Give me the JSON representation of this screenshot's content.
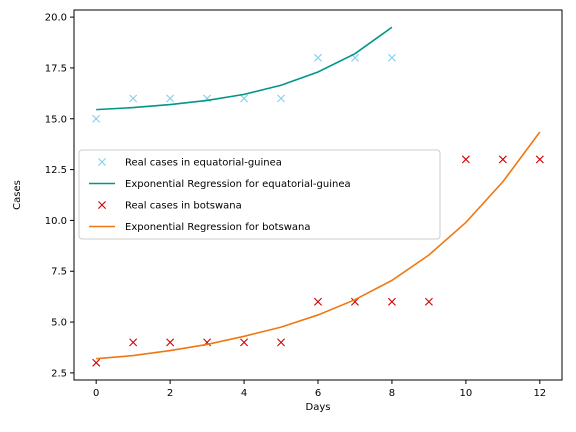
{
  "chart_data": {
    "type": "line",
    "title": "",
    "xlabel": "Days",
    "ylabel": "Cases",
    "xlim": [
      -0.6,
      12.6
    ],
    "ylim": [
      2.15,
      20.35
    ],
    "xticks": [
      0,
      2,
      4,
      6,
      8,
      10,
      12
    ],
    "yticks": [
      2.5,
      5.0,
      7.5,
      10.0,
      12.5,
      15.0,
      17.5,
      20.0
    ],
    "ytick_labels": [
      "2.5",
      "5.0",
      "7.5",
      "10.0",
      "12.5",
      "15.0",
      "17.5",
      "20.0"
    ],
    "grid": false,
    "legend_position": "center-left",
    "series": [
      {
        "name": "Real cases in equatorial-guinea",
        "kind": "scatter",
        "marker": "x",
        "color": "#87ceeb",
        "x": [
          0,
          1,
          2,
          3,
          4,
          5,
          6,
          7,
          8
        ],
        "y": [
          15,
          16,
          16,
          16,
          16,
          16,
          18,
          18,
          18
        ]
      },
      {
        "name": "Exponential Regression for equatorial-guinea",
        "kind": "line",
        "color": "#009688",
        "x": [
          0,
          1,
          2,
          3,
          4,
          5,
          6,
          7,
          8
        ],
        "y": [
          15.45,
          15.55,
          15.7,
          15.9,
          16.2,
          16.65,
          17.3,
          18.2,
          19.5
        ]
      },
      {
        "name": "Real cases in botswana",
        "kind": "scatter",
        "marker": "x",
        "color": "#d00000",
        "x": [
          0,
          1,
          2,
          3,
          4,
          5,
          6,
          7,
          8,
          9,
          10,
          11,
          12
        ],
        "y": [
          3,
          4,
          4,
          4,
          4,
          4,
          6,
          6,
          6,
          6,
          13,
          13,
          13
        ]
      },
      {
        "name": "Exponential Regression for botswana",
        "kind": "line",
        "color": "#f07814",
        "x": [
          0,
          1,
          2,
          3,
          4,
          5,
          6,
          7,
          8,
          9,
          10,
          11,
          12
        ],
        "y": [
          3.2,
          3.35,
          3.6,
          3.9,
          4.3,
          4.75,
          5.35,
          6.1,
          7.05,
          8.3,
          9.9,
          11.9,
          14.35
        ]
      }
    ]
  }
}
